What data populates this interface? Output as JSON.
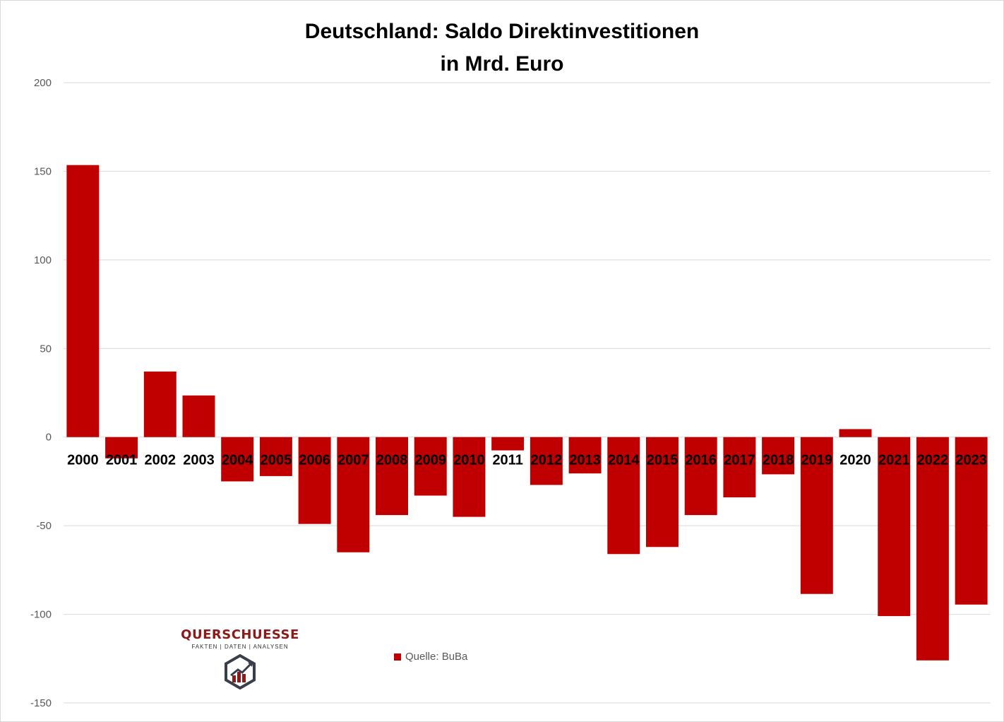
{
  "title": {
    "line1": "Deutschland: Saldo Direktinvestitionen",
    "line2": "in Mrd. Euro"
  },
  "chart_data": {
    "type": "bar",
    "categories": [
      "2000",
      "2001",
      "2002",
      "2003",
      "2004",
      "2005",
      "2006",
      "2007",
      "2008",
      "2009",
      "2010",
      "2011",
      "2012",
      "2013",
      "2014",
      "2015",
      "2016",
      "2017",
      "2018",
      "2019",
      "2020",
      "2021",
      "2022",
      "2023"
    ],
    "series": [
      {
        "name": "Quelle: BuBa",
        "color": "#c00000",
        "values": [
          153.5,
          -12,
          37,
          23.5,
          -25,
          -22,
          -49,
          -65,
          -44,
          -33,
          -45,
          -7.5,
          -27,
          -20.5,
          -66,
          -62,
          -44,
          -34,
          -21,
          -88.5,
          4.5,
          -101,
          -126,
          -94.5
        ]
      }
    ],
    "ylim": [
      -150,
      200
    ],
    "yticks": [
      200,
      150,
      100,
      50,
      0,
      -50,
      -100,
      -150
    ],
    "grid": true,
    "legend_position": "bottom-center",
    "xlabel": "",
    "ylabel": ""
  },
  "logo": {
    "name": "QUERSCHUESSE",
    "tagline": "FAKTEN | DATEN | ANALYSEN"
  },
  "legend": {
    "label": "Quelle: BuBa"
  }
}
